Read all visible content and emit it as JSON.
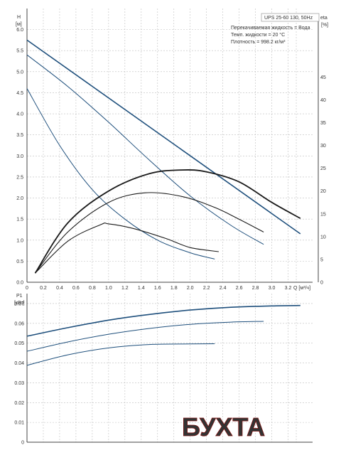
{
  "chart_data": [
    {
      "type": "line",
      "title": "UPS 25-60 130, 50Hz",
      "info_lines": [
        "Перекачиваемая жидкость = Вода",
        "Темп. жидкости = 20 °C",
        "Плотность = 998.2 кг/м³"
      ],
      "ylabel_left": [
        "H",
        "[м]"
      ],
      "ylabel_right": [
        "eta",
        "[%]"
      ],
      "xlabel": "Q [м³/ч]",
      "xlim": [
        0,
        3.5
      ],
      "ylim": [
        0,
        6.5
      ],
      "y2lim": [
        0,
        60
      ],
      "x_ticks": [
        "0",
        "0.2",
        "0.4",
        "0.6",
        "0.8",
        "1.0",
        "1.2",
        "1.4",
        "1.6",
        "1.8",
        "2.0",
        "2.2",
        "2.4",
        "2.6",
        "2.8",
        "3.0",
        "3.2"
      ],
      "y_ticks": [
        "0.0",
        "0.5",
        "1.0",
        "1.5",
        "2.0",
        "2.5",
        "3.0",
        "3.5",
        "4.0",
        "4.5",
        "5.0",
        "5.5",
        "6.0"
      ],
      "y2_ticks": [
        "0",
        "5",
        "10",
        "15",
        "20",
        "25",
        "30",
        "35",
        "40",
        "45"
      ],
      "head_series": [
        {
          "x": [
            0,
            3.35
          ],
          "y": [
            5.75,
            1.15
          ]
        },
        {
          "x": [
            0,
            0.5,
            1.0,
            1.5,
            2.0,
            2.5,
            2.9
          ],
          "y": [
            5.4,
            4.65,
            3.8,
            2.9,
            2.05,
            1.35,
            0.9
          ]
        },
        {
          "x": [
            0,
            0.4,
            0.8,
            1.2,
            1.6,
            2.0,
            2.3
          ],
          "y": [
            4.6,
            3.25,
            2.2,
            1.5,
            1.0,
            0.7,
            0.55
          ]
        }
      ],
      "eta_series": [
        {
          "x": [
            0.1,
            0.5,
            1.0,
            1.5,
            1.9,
            2.2,
            2.6,
            3.0,
            3.35
          ],
          "y": [
            2,
            13,
            20,
            23.8,
            24.6,
            24.2,
            22,
            17.5,
            14
          ]
        },
        {
          "x": [
            0.1,
            0.5,
            1.0,
            1.45,
            1.9,
            2.3,
            2.6,
            2.9
          ],
          "y": [
            2,
            11,
            17.5,
            19.6,
            18.8,
            16.4,
            13.8,
            11
          ]
        },
        {
          "x": [
            0.1,
            0.5,
            0.9,
            1.0,
            1.3,
            1.7,
            2.0,
            2.35
          ],
          "y": [
            2,
            9,
            12.6,
            12.8,
            11.8,
            9.6,
            7.6,
            6.7
          ]
        }
      ]
    },
    {
      "type": "line",
      "ylabel": [
        "P1",
        "[кВт]"
      ],
      "xlim": [
        0,
        3.5
      ],
      "ylim": [
        0,
        0.075
      ],
      "y_ticks": [
        "0",
        "0.01",
        "0.02",
        "0.03",
        "0.04",
        "0.05",
        "0.06",
        "0.07"
      ],
      "series": [
        {
          "x": [
            0,
            0.5,
            1.0,
            1.5,
            2.0,
            2.5,
            3.0,
            3.35
          ],
          "y": [
            0.0535,
            0.0578,
            0.0616,
            0.0645,
            0.0667,
            0.0681,
            0.0688,
            0.069
          ]
        },
        {
          "x": [
            0,
            0.5,
            1.0,
            1.5,
            2.0,
            2.5,
            2.9
          ],
          "y": [
            0.0459,
            0.0506,
            0.0545,
            0.0574,
            0.0595,
            0.0606,
            0.061
          ]
        },
        {
          "x": [
            0,
            0.5,
            1.0,
            1.5,
            2.0,
            2.3
          ],
          "y": [
            0.0388,
            0.0441,
            0.0476,
            0.0493,
            0.0496,
            0.0497
          ]
        }
      ]
    }
  ],
  "watermark": {
    "text": "БУХТА",
    "color": "#e32521"
  }
}
